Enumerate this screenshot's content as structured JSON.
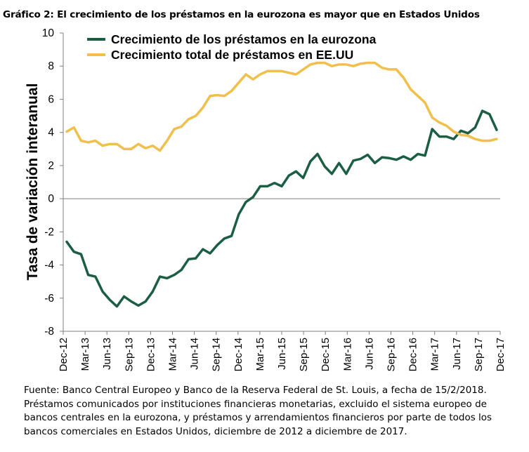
{
  "chart_data": {
    "type": "line",
    "title": "Gráfico 2: El crecimiento de los préstamos en la eurozona es mayor que en Estados Unidos",
    "xlabel": "",
    "ylabel": "Tasa de variación interanual",
    "ylim": [
      -8,
      10
    ],
    "yticks": [
      "10",
      "8",
      "6",
      "4",
      "2",
      "0",
      "-2",
      "-4",
      "-6",
      "-8"
    ],
    "xtick_labels": [
      "Dec-12",
      "Mar-13",
      "Jun-13",
      "Sep-13",
      "Dec-13",
      "Mar-14",
      "Jun-14",
      "Sep-14",
      "Dec-14",
      "Mar-15",
      "Jun-15",
      "Sep-15",
      "Dec-15",
      "Mar-16",
      "Jun-16",
      "Sep-16",
      "Dec-16",
      "Mar-17",
      "Jun-17",
      "Sep-17",
      "Dec-17"
    ],
    "legend_position": "top-left",
    "grid": false,
    "series": [
      {
        "name": "Crecimiento de los préstamos en la eurozona",
        "color": "#1b5e44",
        "values": [
          -2.6,
          -3.2,
          -3.35,
          -4.6,
          -4.7,
          -5.6,
          -6.1,
          -6.5,
          -5.9,
          -6.2,
          -6.45,
          -6.2,
          -5.6,
          -4.7,
          -4.8,
          -4.6,
          -4.3,
          -3.65,
          -3.6,
          -3.05,
          -3.3,
          -2.8,
          -2.4,
          -2.25,
          -0.95,
          -0.2,
          0.1,
          0.75,
          0.75,
          0.95,
          0.75,
          1.4,
          1.65,
          1.25,
          2.25,
          2.7,
          1.95,
          1.5,
          2.15,
          1.5,
          2.3,
          2.4,
          2.65,
          2.15,
          2.5,
          2.45,
          2.35,
          2.55,
          2.35,
          2.7,
          2.6,
          4.2,
          3.75,
          3.75,
          3.6,
          4.1,
          3.95,
          4.3,
          5.3,
          5.1,
          4.15
        ]
      },
      {
        "name": "Crecimiento total de préstamos en EE.UU",
        "color": "#f0bf4c",
        "values": [
          4.05,
          4.3,
          3.5,
          3.4,
          3.5,
          3.2,
          3.3,
          3.3,
          3.0,
          3.0,
          3.3,
          3.05,
          3.2,
          2.9,
          3.5,
          4.2,
          4.35,
          4.8,
          5.0,
          5.5,
          6.2,
          6.25,
          6.2,
          6.5,
          7.0,
          7.5,
          7.2,
          7.5,
          7.7,
          7.7,
          7.7,
          7.6,
          7.5,
          7.8,
          8.1,
          8.2,
          8.2,
          8.0,
          8.1,
          8.1,
          8.0,
          8.15,
          8.2,
          8.2,
          7.9,
          7.8,
          7.8,
          7.3,
          6.6,
          6.2,
          5.8,
          4.9,
          4.6,
          4.4,
          4.05,
          3.85,
          3.8,
          3.6,
          3.5,
          3.5,
          3.6
        ]
      }
    ]
  },
  "source_note": [
    "Fuente: Banco Central Europeo y Banco de la Reserva Federal de St. Louis, a fecha de 15/2/2018.",
    "Préstamos comunicados por instituciones financieras monetarias, excluido el sistema europeo de",
    "bancos centrales en la eurozona, y préstamos y arrendamientos financieros por parte de todos los",
    "bancos comerciales en Estados Unidos, diciembre de 2012 a diciembre de 2017."
  ]
}
